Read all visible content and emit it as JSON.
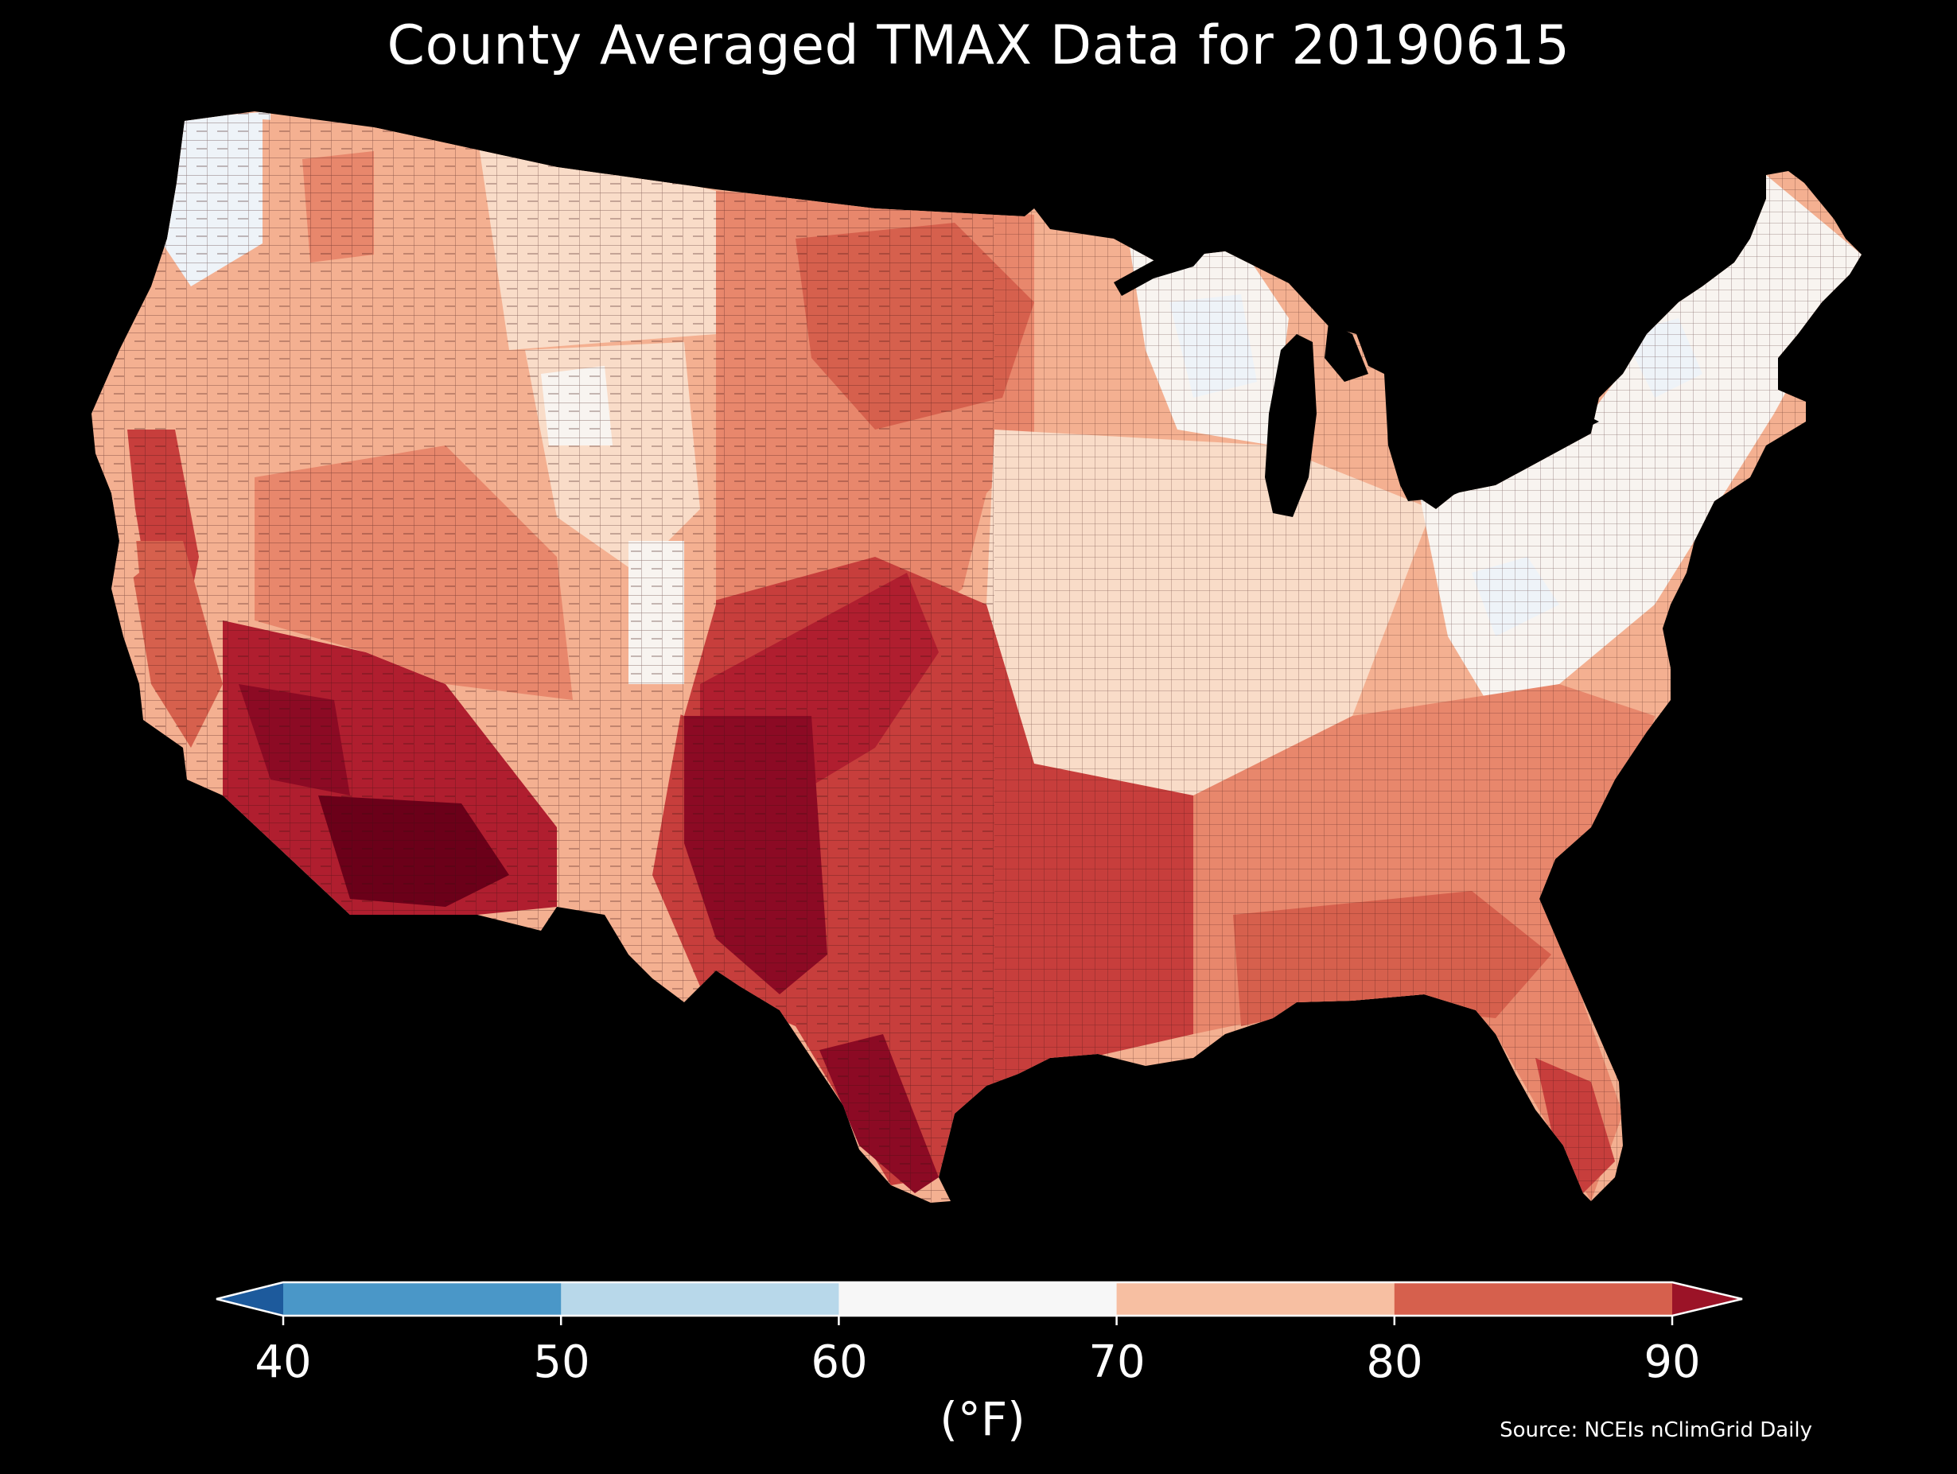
{
  "title": "County Averaged TMAX Data for 20190615",
  "source": "Source: NCEIs nClimGrid Daily",
  "colorbar": {
    "unit": "(°F)",
    "ticks": [
      "40",
      "50",
      "60",
      "70",
      "80",
      "90"
    ],
    "colors": {
      "below_40": "#1d5a9c",
      "40_50": "#4a97c8",
      "50_60": "#b8d8ea",
      "60_70": "#f7f7f7",
      "70_80": "#f7bfa2",
      "80_90": "#d6604d",
      "above_90": "#9b1327"
    },
    "extend": "both"
  },
  "map": {
    "region": "contiguous United States",
    "background": "#000000",
    "county_palette": [
      "#eef3f8",
      "#f8f4f0",
      "#f9dcc8",
      "#f4b091",
      "#e8876c",
      "#d6604d",
      "#c73e3c",
      "#b01e2f",
      "#8c0a24",
      "#6b0019"
    ]
  }
}
